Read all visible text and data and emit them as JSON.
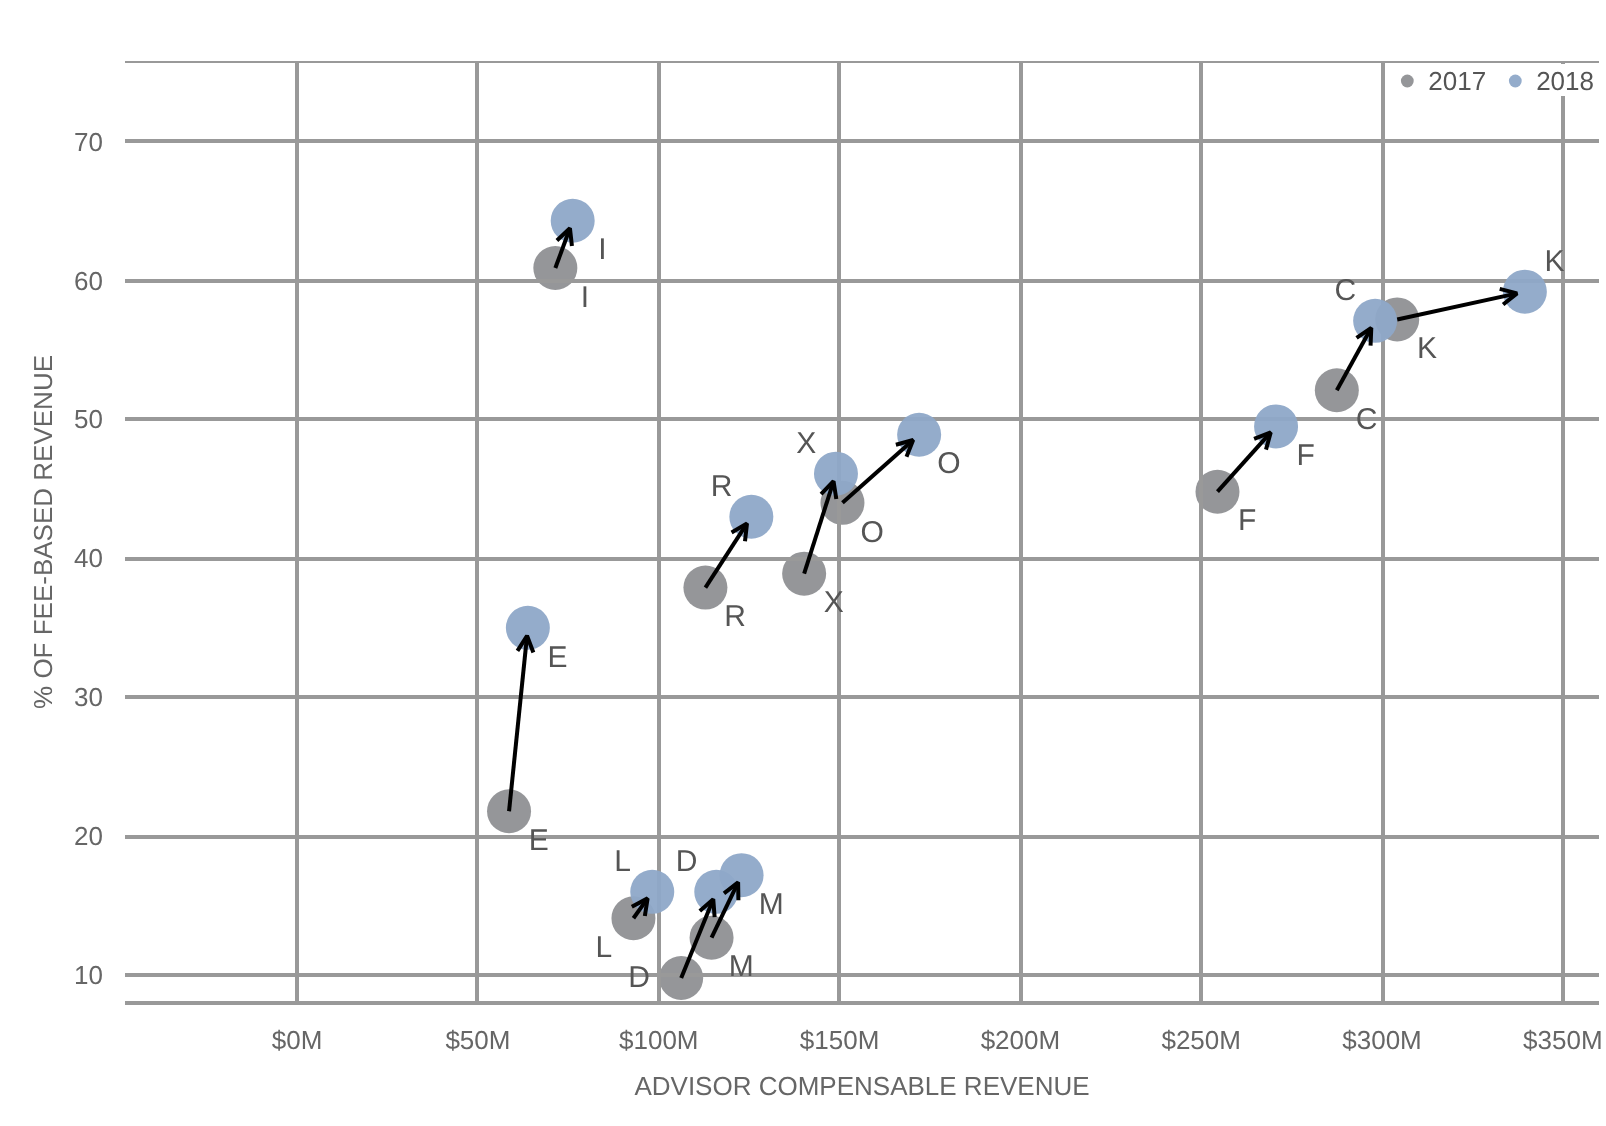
{
  "chart_data": {
    "type": "scatter",
    "xlabel": "ADVISOR COMPENSABLE REVENUE",
    "ylabel": "% OF FEE-BASED REVENUE",
    "xlim": [
      -47.6,
      360
    ],
    "ylim": [
      8,
      75.8
    ],
    "xticks": [
      {
        "value": 0,
        "label": "$0M"
      },
      {
        "value": 50,
        "label": "$50M"
      },
      {
        "value": 100,
        "label": "$100M"
      },
      {
        "value": 150,
        "label": "$150M"
      },
      {
        "value": 200,
        "label": "$200M"
      },
      {
        "value": 250,
        "label": "$250M"
      },
      {
        "value": 300,
        "label": "$300M"
      },
      {
        "value": 350,
        "label": "$350M"
      }
    ],
    "yticks": [
      10,
      20,
      30,
      40,
      50,
      60,
      70
    ],
    "grid": true,
    "legend": "top right",
    "marker": "circle",
    "series": [
      {
        "name": "2017",
        "color": "#8f9094",
        "x": [
          71.4,
          112.9,
          140.2,
          150.8,
          254.5,
          287.5,
          304.2,
          58.6,
          93.0,
          106.2,
          114.6
        ],
        "values": [
          60.9,
          37.9,
          38.9,
          44.0,
          44.8,
          52.1,
          57.2,
          21.8,
          14.1,
          9.8,
          12.7
        ],
        "value_labels": [
          "I",
          "R",
          "X",
          "O",
          "F",
          "C",
          "K",
          "E",
          "L",
          "D",
          "M"
        ]
      },
      {
        "name": "2018",
        "color": "#8ea8c8",
        "x": [
          76.2,
          125.6,
          149.0,
          172.0,
          270.7,
          298.1,
          339.5,
          63.8,
          98.2,
          115.9,
          122.9
        ],
        "values": [
          64.3,
          43.0,
          46.1,
          48.9,
          49.5,
          57.1,
          59.2,
          35.0,
          16.0,
          16.0,
          17.2
        ],
        "value_labels": [
          "I",
          "R",
          "X",
          "O",
          "F",
          "C",
          "K",
          "E",
          "L",
          "D",
          "M"
        ]
      }
    ]
  }
}
